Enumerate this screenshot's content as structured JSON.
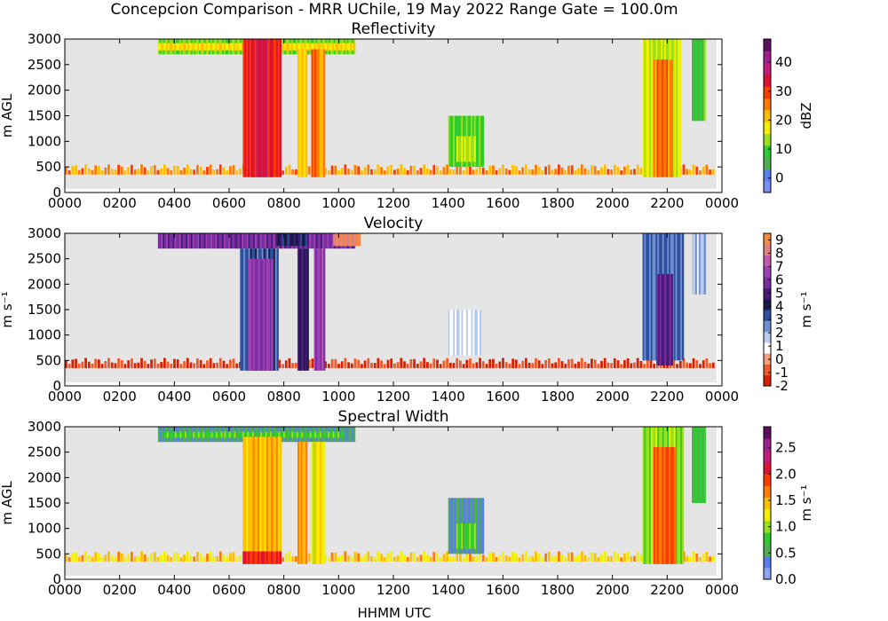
{
  "figure": {
    "title": "Concepcion Comparison - MRR UChile, 19 May 2022 Range Gate = 100.0m",
    "xlabel": "HHMM UTC"
  },
  "chart_data": [
    {
      "type": "heatmap",
      "title": "Reflectivity",
      "ylabel": "m AGL",
      "colorbar_label": "dBZ",
      "xlim": [
        0,
        24
      ],
      "ylim": [
        0,
        3000
      ],
      "xticks": [
        "0000",
        "0200",
        "0400",
        "0600",
        "0800",
        "1000",
        "1200",
        "1400",
        "1600",
        "1800",
        "2000",
        "2200",
        "0000"
      ],
      "yticks": [
        0,
        500,
        1000,
        1500,
        2000,
        2500,
        3000
      ],
      "clim": [
        -5,
        48
      ],
      "cticks": [
        0,
        10,
        20,
        30,
        40
      ],
      "colormap": [
        "#7b8ff5",
        "#5a7df0",
        "#4caf50",
        "#2ecc2e",
        "#9be01a",
        "#f2ef00",
        "#ffbe00",
        "#ff7a00",
        "#ff3a00",
        "#dd1133",
        "#c21e7a",
        "#a0208f",
        "#5b0f5e"
      ],
      "background": "#e5e5e5",
      "regions": [
        {
          "t0": 3.4,
          "t1": 10.6,
          "z0": 2700,
          "z1": 3000,
          "value": 12
        },
        {
          "t0": 3.4,
          "t1": 10.6,
          "z0": 2780,
          "z1": 2920,
          "value": 19
        },
        {
          "t0": 6.5,
          "t1": 7.9,
          "z0": 300,
          "z1": 3000,
          "value": 31
        },
        {
          "t0": 6.8,
          "t1": 7.6,
          "z0": 300,
          "z1": 3000,
          "value": 34
        },
        {
          "t0": 8.5,
          "t1": 8.85,
          "z0": 300,
          "z1": 2800,
          "value": 21
        },
        {
          "t0": 9.0,
          "t1": 9.3,
          "z0": 300,
          "z1": 2800,
          "value": 28
        },
        {
          "t0": 9.3,
          "t1": 9.5,
          "z0": 300,
          "z1": 2800,
          "value": 22
        },
        {
          "t0": 14.0,
          "t1": 15.3,
          "z0": 500,
          "z1": 1500,
          "value": 10
        },
        {
          "t0": 14.3,
          "t1": 15.0,
          "z0": 600,
          "z1": 1100,
          "value": 14
        },
        {
          "t0": 21.1,
          "t1": 22.5,
          "z0": 300,
          "z1": 3000,
          "value": 15
        },
        {
          "t0": 21.5,
          "t1": 22.2,
          "z0": 300,
          "z1": 2600,
          "value": 26
        },
        {
          "t0": 22.9,
          "t1": 23.4,
          "z0": 1400,
          "z1": 3000,
          "value": 9
        }
      ],
      "surface_band": {
        "z0": 350,
        "z1": 600,
        "value": 24
      }
    },
    {
      "type": "heatmap",
      "title": "Velocity",
      "ylabel": "m s⁻¹",
      "colorbar_label": "m s⁻¹",
      "xlim": [
        0,
        24
      ],
      "ylim": [
        0,
        3000
      ],
      "xticks": [
        "0000",
        "0200",
        "0400",
        "0600",
        "0800",
        "1000",
        "1200",
        "1400",
        "1600",
        "1800",
        "2000",
        "2200",
        "0000"
      ],
      "yticks": [
        0,
        500,
        1000,
        1500,
        2000,
        2500,
        3000
      ],
      "clim": [
        -2,
        9.5
      ],
      "cticks": [
        -2,
        -1,
        0,
        1,
        2,
        3,
        4,
        5,
        6,
        7,
        8,
        9
      ],
      "colormap": [
        "#d62000",
        "#f05a2a",
        "#f7a07a",
        "#ffffff",
        "#b9cbec",
        "#6f8fd0",
        "#2e4f9e",
        "#1a1a4a",
        "#4a1a7a",
        "#7a2fa0",
        "#a040b5",
        "#c55ab0",
        "#e08080",
        "#f58a40"
      ],
      "background": "#e5e5e5",
      "regions": [
        {
          "t0": 3.4,
          "t1": 10.6,
          "z0": 2700,
          "z1": 3000,
          "value": 5.8
        },
        {
          "t0": 7.7,
          "t1": 8.9,
          "z0": 2750,
          "z1": 3000,
          "value": 4.2
        },
        {
          "t0": 9.8,
          "t1": 10.8,
          "z0": 2750,
          "z1": 3000,
          "value": 8.5
        },
        {
          "t0": 6.4,
          "t1": 7.8,
          "z0": 300,
          "z1": 2700,
          "value": 3.3
        },
        {
          "t0": 6.7,
          "t1": 7.6,
          "z0": 300,
          "z1": 2500,
          "value": 6.2
        },
        {
          "t0": 8.5,
          "t1": 8.9,
          "z0": 300,
          "z1": 2700,
          "value": 4.5
        },
        {
          "t0": 9.1,
          "t1": 9.5,
          "z0": 300,
          "z1": 2700,
          "value": 6.5
        },
        {
          "t0": 14.0,
          "t1": 15.2,
          "z0": 600,
          "z1": 1500,
          "value": 1.3
        },
        {
          "t0": 21.1,
          "t1": 22.6,
          "z0": 500,
          "z1": 3000,
          "value": 3.0
        },
        {
          "t0": 21.6,
          "t1": 22.2,
          "z0": 400,
          "z1": 2200,
          "value": 5.3
        },
        {
          "t0": 22.9,
          "t1": 23.4,
          "z0": 1800,
          "z1": 3000,
          "value": 1.8
        }
      ],
      "surface_band": {
        "z0": 350,
        "z1": 550,
        "value": -1.3
      }
    },
    {
      "type": "heatmap",
      "title": "Spectral Width",
      "ylabel": "m AGL",
      "colorbar_label": "m s⁻¹",
      "xlim": [
        0,
        24
      ],
      "ylim": [
        0,
        3000
      ],
      "xticks": [
        "0000",
        "0200",
        "0400",
        "0600",
        "0800",
        "1000",
        "1200",
        "1400",
        "1600",
        "1800",
        "2000",
        "2200",
        "0000"
      ],
      "yticks": [
        0,
        500,
        1000,
        1500,
        2000,
        2500,
        3000
      ],
      "clim": [
        0,
        2.9
      ],
      "cticks": [
        0.0,
        0.5,
        1.0,
        1.5,
        2.0,
        2.5
      ],
      "colormap": [
        "#8fa3f5",
        "#5a7df0",
        "#4caf50",
        "#2ecc2e",
        "#9be01a",
        "#f2ef00",
        "#ffbe00",
        "#ff7a00",
        "#ff3a00",
        "#dd1133",
        "#c21e7a",
        "#a0208f",
        "#5b0f5e"
      ],
      "background": "#e5e5e5",
      "regions": [
        {
          "t0": 3.4,
          "t1": 10.6,
          "z0": 2700,
          "z1": 3000,
          "value": 0.5
        },
        {
          "t0": 3.6,
          "t1": 10.2,
          "z0": 2780,
          "z1": 2900,
          "value": 0.8
        },
        {
          "t0": 6.5,
          "t1": 7.9,
          "z0": 300,
          "z1": 2800,
          "value": 1.45
        },
        {
          "t0": 6.5,
          "t1": 7.9,
          "z0": 300,
          "z1": 550,
          "value": 2.0
        },
        {
          "t0": 8.5,
          "t1": 8.85,
          "z0": 300,
          "z1": 2700,
          "value": 1.5
        },
        {
          "t0": 9.0,
          "t1": 9.5,
          "z0": 300,
          "z1": 2700,
          "value": 1.25
        },
        {
          "t0": 14.0,
          "t1": 15.3,
          "z0": 500,
          "z1": 1600,
          "value": 0.45
        },
        {
          "t0": 14.3,
          "t1": 15.0,
          "z0": 600,
          "z1": 1100,
          "value": 0.8
        },
        {
          "t0": 21.1,
          "t1": 22.6,
          "z0": 300,
          "z1": 3000,
          "value": 1.0
        },
        {
          "t0": 21.5,
          "t1": 22.3,
          "z0": 300,
          "z1": 2600,
          "value": 1.8
        },
        {
          "t0": 22.9,
          "t1": 23.4,
          "z0": 1500,
          "z1": 3000,
          "value": 0.7
        }
      ],
      "surface_band": {
        "z0": 350,
        "z1": 600,
        "value": 1.35
      }
    }
  ]
}
